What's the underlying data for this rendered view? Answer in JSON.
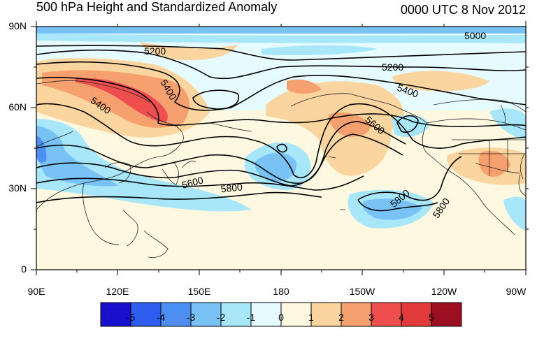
{
  "title": "500 hPa Height and Standardized Anomaly",
  "datetime": "0000 UTC 8 Nov 2012",
  "axes": {
    "lat_labels": [
      "90N",
      "60N",
      "30N",
      "0"
    ],
    "lon_labels": [
      "90E",
      "120E",
      "150E",
      "180",
      "150W",
      "120W",
      "90W"
    ]
  },
  "contour_labels": [
    "5000",
    "5200",
    "5200",
    "5400",
    "5400",
    "5400",
    "5600",
    "5600",
    "5800",
    "5800",
    "5800"
  ],
  "colorbar": {
    "labels": [
      "-5",
      "-4",
      "-3",
      "-2",
      "-1",
      "0",
      "1",
      "2",
      "3",
      "4",
      "5"
    ],
    "colors": [
      "#1a0fcc",
      "#2e5df0",
      "#4d8ff0",
      "#78c2f5",
      "#a8e6fa",
      "#e6fbff",
      "#fff8e0",
      "#fbd59f",
      "#f5a06e",
      "#ee4e4e",
      "#e03a3a",
      "#9b0f20"
    ]
  },
  "colors": {
    "land_line": "#222222",
    "contour": "#000000",
    "frame": "#000000"
  }
}
